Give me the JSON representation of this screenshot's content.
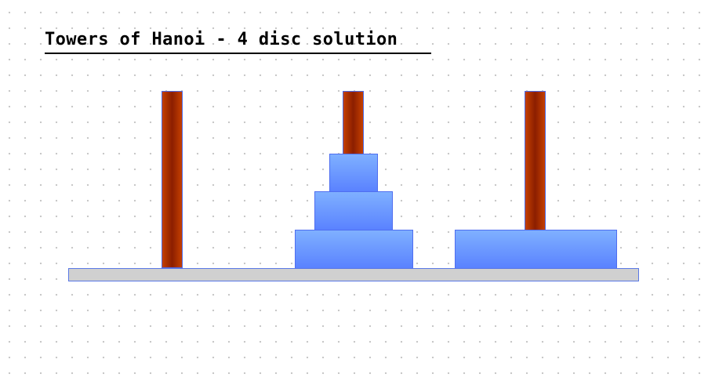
{
  "title": "Towers of Hanoi - 4 disc solution",
  "colors": {
    "peg": "#8c1e00",
    "disc": "#6d99ff",
    "base": "#d0d0d0",
    "outline": "#4f6ef0"
  },
  "game": {
    "pegs": [
      "left-peg",
      "middle-peg",
      "right-peg"
    ],
    "disc_count": 4,
    "placement": {
      "left-peg": [],
      "middle-peg": [
        3,
        2,
        1
      ],
      "right-peg": [
        4
      ]
    }
  }
}
